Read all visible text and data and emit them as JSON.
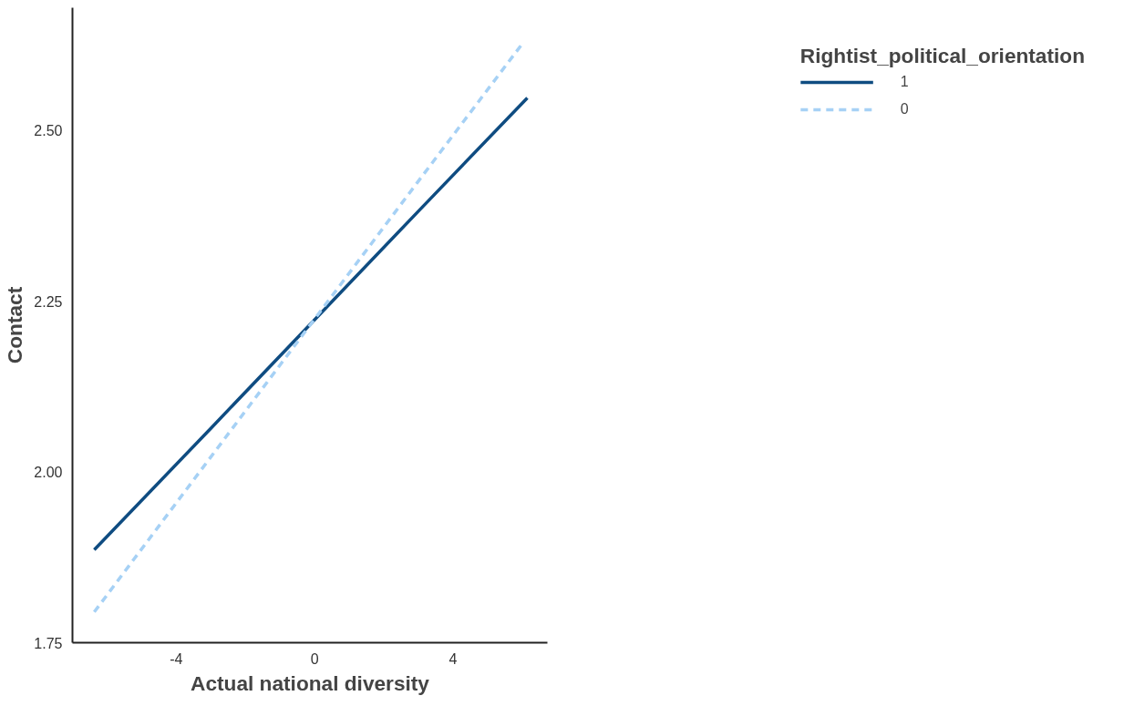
{
  "chart_data": {
    "type": "line",
    "xlabel": "Actual national diversity",
    "ylabel": "Contact",
    "legend_title": "Rightist_political_orientation",
    "xlim": [
      -7.0,
      6.73
    ],
    "ylim": [
      1.75,
      2.68
    ],
    "xticks": [
      -4,
      0,
      4
    ],
    "yticks": [
      {
        "value": 1.75,
        "label": "1.75"
      },
      {
        "value": 2.0,
        "label": "2.00"
      },
      {
        "value": 2.25,
        "label": "2.25"
      },
      {
        "value": 2.5,
        "label": "2.50"
      }
    ],
    "grid": false,
    "legend": "right",
    "marker": "none",
    "series": [
      {
        "name": "1",
        "color": "#0f4c81",
        "line_style": "solid",
        "x": [
          -6.37,
          -3,
          0,
          3,
          6.15
        ],
        "values": [
          1.886,
          2.064,
          2.223,
          2.382,
          2.548
        ]
      },
      {
        "name": "0",
        "color": "#a6d1f5",
        "line_style": "dashed",
        "x": [
          -6.37,
          -3,
          0,
          3,
          6.03
        ],
        "values": [
          1.795,
          2.022,
          2.224,
          2.426,
          2.629
        ]
      }
    ]
  }
}
